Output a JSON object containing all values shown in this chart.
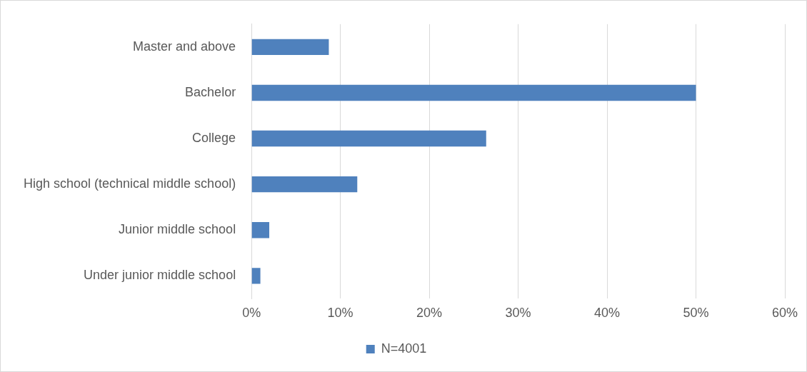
{
  "chart_data": {
    "type": "bar",
    "orientation": "horizontal",
    "categories": [
      "Master and above",
      "Bachelor",
      "College",
      "High school (technical middle school)",
      "Junior middle school",
      "Under junior middle school"
    ],
    "series": [
      {
        "name": "N=4001",
        "color": "#4f81bd",
        "values": [
          8.7,
          50.0,
          26.4,
          11.9,
          2.0,
          1.0
        ]
      }
    ],
    "xlim": [
      0,
      60
    ],
    "xticks": [
      {
        "value": 0,
        "label": "0%"
      },
      {
        "value": 10,
        "label": "10%"
      },
      {
        "value": 20,
        "label": "20%"
      },
      {
        "value": 30,
        "label": "30%"
      },
      {
        "value": 40,
        "label": "40%"
      },
      {
        "value": 50,
        "label": "50%"
      },
      {
        "value": 60,
        "label": "60%"
      }
    ],
    "grid": "x",
    "legend": "bottom"
  }
}
